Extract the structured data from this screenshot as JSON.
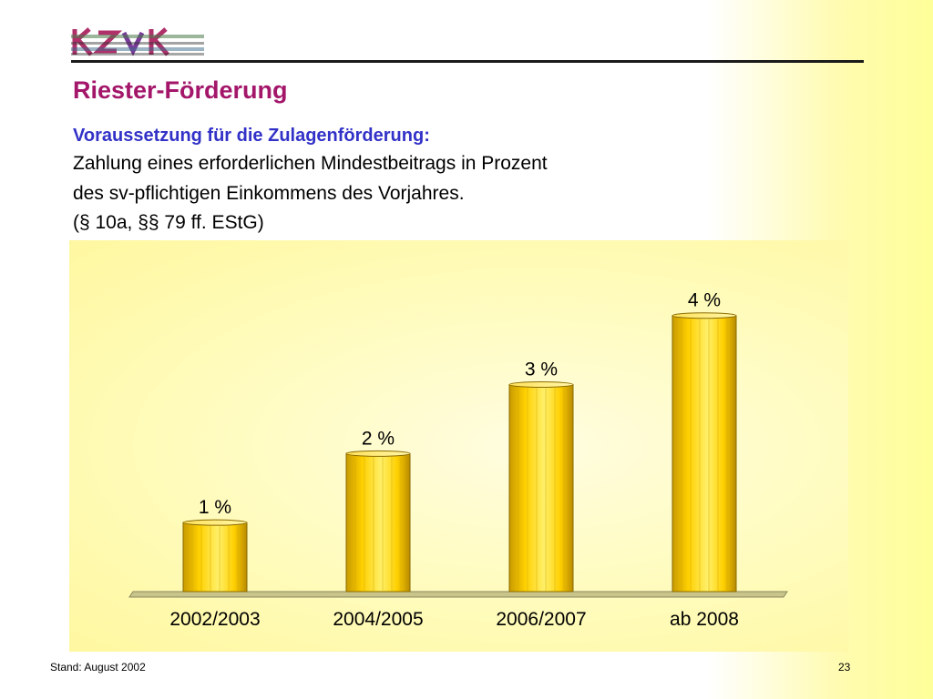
{
  "header": {
    "title": "Riester-Förderung",
    "subtitle": "Voraussetzung für die Zulagenförderung:",
    "description_lines": [
      "Zahlung eines erforderlichen Mindestbeitrags in Prozent",
      "des sv-pflichtigen Einkommens des Vorjahres.",
      "(§ 10a, §§ 79 ff.  EStG)"
    ]
  },
  "footer": {
    "left": "Stand: August 2002",
    "page_number": "23"
  },
  "colors": {
    "title": "#a3166a",
    "subtitle": "#3232c8",
    "bar": "#ffd200"
  },
  "chart_data": {
    "type": "bar",
    "categories": [
      "2002/2003",
      "2004/2005",
      "2006/2007",
      "ab 2008"
    ],
    "values": [
      1,
      2,
      3,
      4
    ],
    "data_labels": [
      "1 %",
      "2 %",
      "3 %",
      "4 %"
    ],
    "ylim": [
      0,
      4.3
    ],
    "grid": false,
    "legend": "none"
  }
}
